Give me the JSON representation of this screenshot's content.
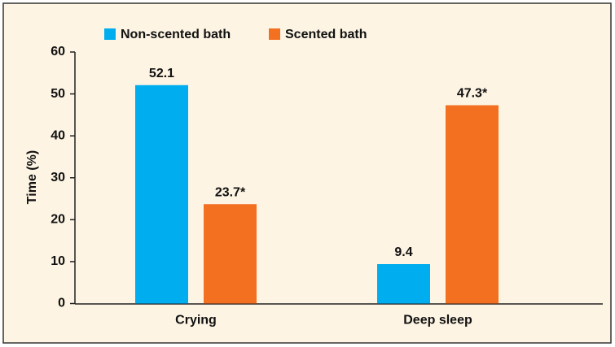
{
  "chart_data": {
    "type": "bar",
    "y_label": "Time (%)",
    "categories": [
      "Crying",
      "Deep sleep"
    ],
    "series": [
      {
        "name": "Non-scented bath",
        "color": "#00aeef",
        "values": [
          52.1,
          9.4
        ]
      },
      {
        "name": "Scented bath",
        "color": "#f37021",
        "values": [
          23.7,
          47.3
        ],
        "value_labels": [
          "23.7*",
          "47.3*"
        ]
      }
    ],
    "ylim": [
      0,
      60
    ],
    "yticks": [
      0,
      10,
      20,
      30,
      40,
      50,
      60
    ],
    "grid": false
  }
}
